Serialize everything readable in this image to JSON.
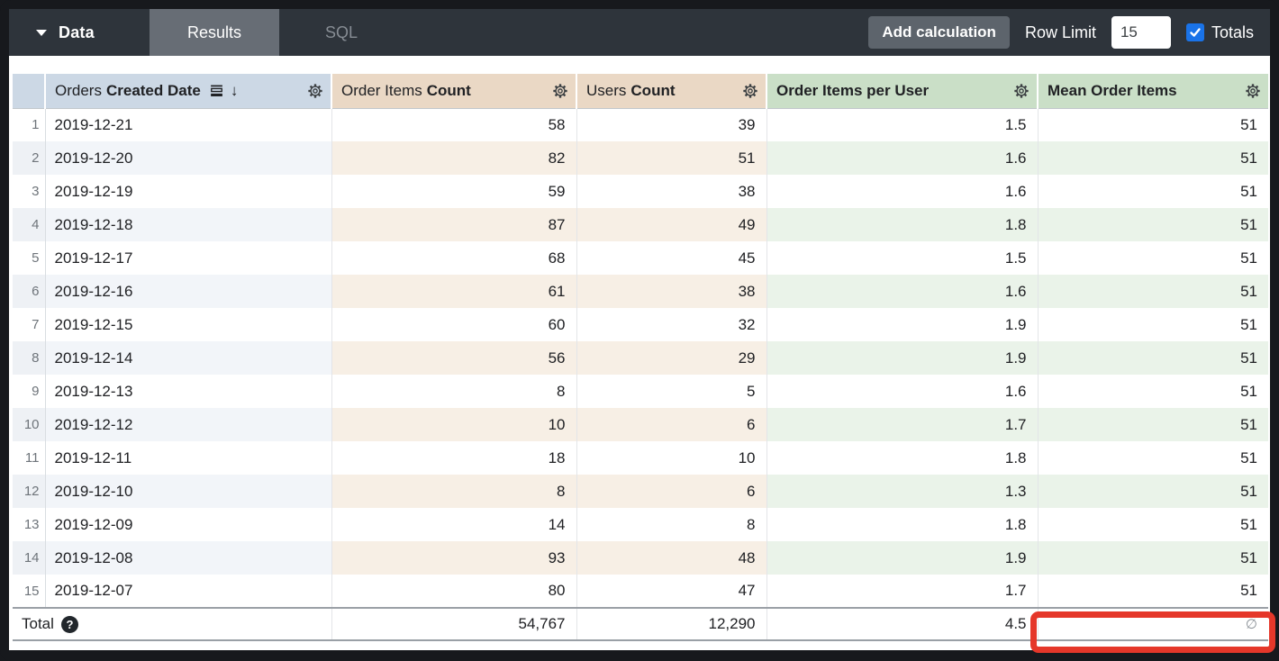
{
  "toolbar": {
    "data_menu_label": "Data",
    "tabs": [
      {
        "label": "Results",
        "active": true
      },
      {
        "label": "SQL",
        "active": false
      }
    ],
    "add_calculation_label": "Add calculation",
    "row_limit_label": "Row Limit",
    "row_limit_value": "15",
    "totals_label": "Totals",
    "totals_checked": true
  },
  "table": {
    "columns": [
      {
        "key": "date",
        "group": "Orders",
        "label": "Created Date",
        "kind": "dimension",
        "align": "left",
        "sorted_desc": true,
        "icons": [
          "subtotal-icon",
          "sort-desc-arrow",
          "gear-icon"
        ]
      },
      {
        "key": "oic",
        "group": "Order Items",
        "label": "Count",
        "kind": "measure",
        "align": "right",
        "icons": [
          "gear-icon"
        ]
      },
      {
        "key": "uc",
        "group": "Users",
        "label": "Count",
        "kind": "measure",
        "align": "right",
        "icons": [
          "gear-icon"
        ]
      },
      {
        "key": "oipu",
        "group": "",
        "label": "Order Items per User",
        "kind": "calc",
        "align": "right",
        "icons": [
          "gear-icon"
        ]
      },
      {
        "key": "moi",
        "group": "",
        "label": "Mean Order Items",
        "kind": "calc",
        "align": "right",
        "icons": [
          "gear-icon"
        ]
      }
    ],
    "rows": [
      {
        "n": "1",
        "date": "2019-12-21",
        "oic": "58",
        "uc": "39",
        "oipu": "1.5",
        "moi": "51"
      },
      {
        "n": "2",
        "date": "2019-12-20",
        "oic": "82",
        "uc": "51",
        "oipu": "1.6",
        "moi": "51"
      },
      {
        "n": "3",
        "date": "2019-12-19",
        "oic": "59",
        "uc": "38",
        "oipu": "1.6",
        "moi": "51"
      },
      {
        "n": "4",
        "date": "2019-12-18",
        "oic": "87",
        "uc": "49",
        "oipu": "1.8",
        "moi": "51"
      },
      {
        "n": "5",
        "date": "2019-12-17",
        "oic": "68",
        "uc": "45",
        "oipu": "1.5",
        "moi": "51"
      },
      {
        "n": "6",
        "date": "2019-12-16",
        "oic": "61",
        "uc": "38",
        "oipu": "1.6",
        "moi": "51"
      },
      {
        "n": "7",
        "date": "2019-12-15",
        "oic": "60",
        "uc": "32",
        "oipu": "1.9",
        "moi": "51"
      },
      {
        "n": "8",
        "date": "2019-12-14",
        "oic": "56",
        "uc": "29",
        "oipu": "1.9",
        "moi": "51"
      },
      {
        "n": "9",
        "date": "2019-12-13",
        "oic": "8",
        "uc": "5",
        "oipu": "1.6",
        "moi": "51"
      },
      {
        "n": "10",
        "date": "2019-12-12",
        "oic": "10",
        "uc": "6",
        "oipu": "1.7",
        "moi": "51"
      },
      {
        "n": "11",
        "date": "2019-12-11",
        "oic": "18",
        "uc": "10",
        "oipu": "1.8",
        "moi": "51"
      },
      {
        "n": "12",
        "date": "2019-12-10",
        "oic": "8",
        "uc": "6",
        "oipu": "1.3",
        "moi": "51"
      },
      {
        "n": "13",
        "date": "2019-12-09",
        "oic": "14",
        "uc": "8",
        "oipu": "1.8",
        "moi": "51"
      },
      {
        "n": "14",
        "date": "2019-12-08",
        "oic": "93",
        "uc": "48",
        "oipu": "1.9",
        "moi": "51"
      },
      {
        "n": "15",
        "date": "2019-12-07",
        "oic": "80",
        "uc": "47",
        "oipu": "1.7",
        "moi": "51"
      }
    ],
    "total_row": {
      "label": "Total",
      "help_icon": "?",
      "oic": "54,767",
      "uc": "12,290",
      "oipu": "4.5",
      "moi": "∅"
    }
  },
  "annotation": {
    "shape": "highlight-box",
    "target": "total-mean-order-items-cell",
    "color": "#e5372a"
  },
  "colors": {
    "topbar_bg": "#2e343b",
    "tab_active_bg": "#676d75",
    "button_bg": "#5d646c",
    "checkbox_blue": "#1a73e8",
    "dimension_header_bg": "#ccd8e5",
    "measure_header_bg": "#ead8c5",
    "calc_header_bg": "#cadfc7",
    "dimension_zebra": "#f2f5f9",
    "measure_zebra": "#f7efe5",
    "calc_zebra": "#eaf3e9"
  }
}
